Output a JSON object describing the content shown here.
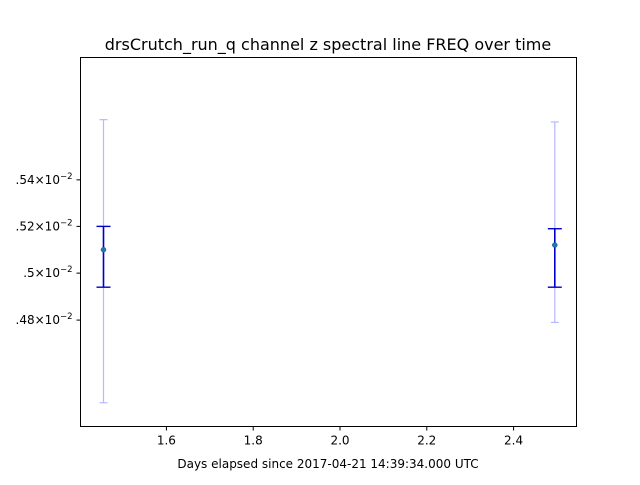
{
  "chart_data": {
    "type": "scatter",
    "title": "drsCrutch_run_q channel z spectral line FREQ over time",
    "xlabel": "Days elapsed since 2017-04-21 14:39:34.000 UTC",
    "ylabel": "",
    "xlim": [
      1.402,
      2.545
    ],
    "ylim": [
      0.04435,
      0.04593
    ],
    "yscale": "log",
    "grid": false,
    "x_ticks": [
      {
        "value": 1.6,
        "label": "1.6"
      },
      {
        "value": 1.8,
        "label": "1.8"
      },
      {
        "value": 2.0,
        "label": "2.0"
      },
      {
        "value": 2.2,
        "label": "2.2"
      },
      {
        "value": 2.4,
        "label": "2.4"
      }
    ],
    "y_ticks": [
      {
        "value": 0.0448,
        "label_mant": ".48",
        "label_exp": "−2"
      },
      {
        "value": 0.045,
        "label_mant": ".5",
        "label_exp": "−2"
      },
      {
        "value": 0.0452,
        "label_mant": ".52",
        "label_exp": "−2"
      },
      {
        "value": 0.0454,
        "label_mant": ".54",
        "label_exp": "−2"
      }
    ],
    "points": [
      {
        "x": 1.455,
        "y": 0.0451,
        "err_inner": [
          0.04494,
          0.0452
        ],
        "err_outer": [
          0.04445,
          0.04566
        ]
      },
      {
        "x": 2.495,
        "y": 0.04512,
        "err_inner": [
          0.04494,
          0.04519
        ],
        "err_outer": [
          0.04479,
          0.04565
        ]
      }
    ],
    "colors": {
      "marker": "#1f77b4",
      "inner_error": "#0000cc",
      "outer_error": "#b8b8ff",
      "axes": "#000000"
    }
  }
}
